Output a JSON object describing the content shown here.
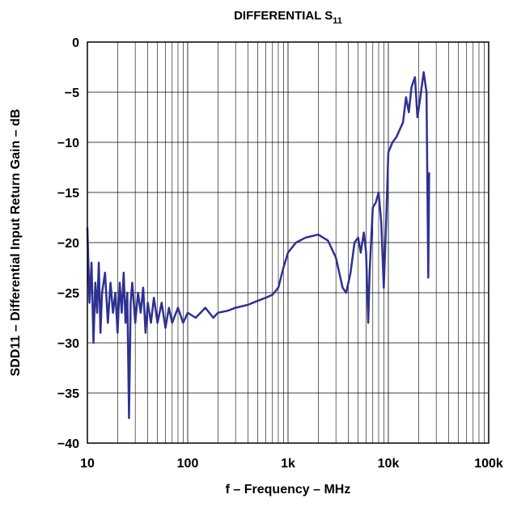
{
  "chart_data": {
    "type": "line",
    "title": "DIFFERENTIAL S",
    "title_subscript": "11",
    "xlabel": "f – Frequency – MHz",
    "ylabel": "SDD11 – Differential Input Return Gain – dB",
    "xscale": "log",
    "grid": true,
    "minor_grid": true,
    "xlim": [
      10,
      100000
    ],
    "ylim": [
      -40,
      0
    ],
    "xticks": [
      10,
      100,
      {
        "value": 1000,
        "label": "1k"
      },
      {
        "value": 10000,
        "label": "10k"
      },
      {
        "value": 100000,
        "label": "100k"
      }
    ],
    "yticks": [
      0,
      {
        "value": -5,
        "label": "−5"
      },
      {
        "value": -10,
        "label": "−10"
      },
      {
        "value": -15,
        "label": "−15"
      },
      {
        "value": -20,
        "label": "−20"
      },
      {
        "value": -25,
        "label": "−25"
      },
      {
        "value": -30,
        "label": "−30"
      },
      {
        "value": -35,
        "label": "−35"
      },
      {
        "value": -40,
        "label": "−40"
      }
    ],
    "series": [
      {
        "color": "#2e3192",
        "x": [
          10,
          10.5,
          11,
          11.5,
          12,
          12.5,
          13,
          13.5,
          14,
          15,
          16,
          17,
          18,
          19,
          20,
          21,
          22,
          23,
          24,
          25,
          26,
          27,
          28,
          30,
          32,
          34,
          36,
          38,
          40,
          43,
          46,
          50,
          55,
          60,
          65,
          70,
          80,
          90,
          100,
          120,
          150,
          180,
          200,
          250,
          300,
          400,
          500,
          600,
          700,
          800,
          900,
          1000,
          1200,
          1500,
          2000,
          2500,
          3000,
          3500,
          3800,
          4200,
          4600,
          5000,
          5300,
          5700,
          6000,
          6300,
          6500,
          7000,
          7500,
          8000,
          8500,
          9000,
          9500,
          10000,
          11000,
          12000,
          14000,
          15000,
          16000,
          17000,
          18400,
          19500,
          20500,
          22500,
          24000,
          25000,
          25500
        ],
        "values": [
          -18.5,
          -26,
          -22,
          -30,
          -24,
          -27,
          -22,
          -29,
          -25,
          -23,
          -28,
          -24,
          -27,
          -25,
          -29,
          -24,
          -27,
          -23,
          -28,
          -25,
          -37.5,
          -26,
          -24,
          -28,
          -25,
          -27,
          -24.5,
          -29,
          -26,
          -28,
          -25.5,
          -28,
          -26,
          -28.5,
          -26.5,
          -28,
          -26.5,
          -28,
          -27,
          -27.5,
          -26.5,
          -27.5,
          -27,
          -26.8,
          -26.5,
          -26.2,
          -25.8,
          -25.5,
          -25.2,
          -24.5,
          -22.5,
          -21,
          -20,
          -19.5,
          -19.2,
          -19.8,
          -21.5,
          -24.5,
          -25,
          -23,
          -20,
          -19.5,
          -21,
          -19,
          -21,
          -28,
          -23,
          -16.5,
          -16,
          -15,
          -18,
          -24.5,
          -18,
          -11,
          -10,
          -9.5,
          -8,
          -5.5,
          -7,
          -4.5,
          -3.5,
          -7.5,
          -6,
          -3,
          -5,
          -23.5,
          -13
        ]
      }
    ]
  }
}
